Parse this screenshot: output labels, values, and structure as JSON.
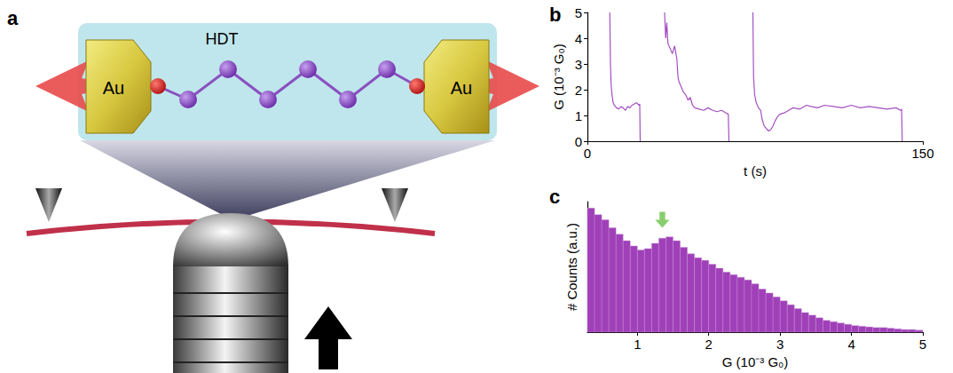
{
  "diagram": {
    "panel_label": "a",
    "molecule_label": "HDT",
    "electrode_left": "Au",
    "electrode_right": "Au"
  },
  "chart_data": [
    {
      "type": "line",
      "panel_label": "b",
      "xlabel": "t (s)",
      "ylabel": "G (10⁻³ G₀)",
      "xlim": [
        0,
        150
      ],
      "xticks": [
        0,
        150
      ],
      "ylim": [
        0,
        5
      ],
      "yticks": [
        0,
        1,
        2,
        3,
        4,
        5
      ],
      "grid": false,
      "x": [
        10,
        10.3,
        10.6,
        11,
        11.5,
        12,
        13,
        14,
        15,
        16,
        17,
        18,
        19,
        20,
        21,
        22,
        23,
        23.4,
        23.6,
        24,
        34.5,
        35,
        35.5,
        36,
        37,
        38,
        39,
        40,
        40.5,
        41,
        42,
        43,
        44,
        45,
        46,
        47,
        48,
        50,
        52,
        54,
        56,
        58,
        60,
        62,
        63,
        63.3,
        64,
        74,
        74.3,
        74.8,
        75.5,
        76.5,
        77.5,
        78,
        79,
        80,
        81,
        82,
        83,
        84,
        85,
        86,
        88,
        90,
        92,
        95,
        98,
        100,
        103,
        106,
        110,
        114,
        118,
        122,
        126,
        130,
        134,
        138,
        140,
        140.5,
        140.8
      ],
      "series": [
        {
          "color": "#a450c2",
          "values": [
            5,
            3,
            2.2,
            1.8,
            1.5,
            1.4,
            1.3,
            1.25,
            1.35,
            1.3,
            1.2,
            1.35,
            1.3,
            1.4,
            1.45,
            1.5,
            1.4,
            1.45,
            0,
            null,
            5,
            4,
            4.6,
            3.8,
            3.6,
            3.4,
            3.7,
            3.2,
            2.5,
            2.3,
            2.1,
            1.9,
            1.8,
            1.6,
            1.7,
            1.4,
            1.3,
            1.25,
            1.2,
            1.3,
            1.2,
            1.15,
            1.2,
            1.1,
            1.05,
            0,
            null,
            5,
            2.5,
            1.8,
            1.5,
            1.3,
            1.2,
            0.9,
            0.6,
            0.5,
            0.4,
            0.45,
            0.6,
            0.8,
            0.95,
            1.05,
            1.1,
            1.2,
            1.3,
            1.25,
            1.4,
            1.35,
            1.3,
            1.4,
            1.35,
            1.3,
            1.4,
            1.3,
            1.35,
            1.3,
            1.25,
            1.3,
            1.2,
            1.25,
            0
          ]
        }
      ]
    },
    {
      "type": "histogram",
      "panel_label": "c",
      "xlabel": "G (10⁻³ G₀)",
      "ylabel": "# Counts (a.u.)",
      "xlim": [
        0.3,
        5
      ],
      "xticks": [
        1,
        2,
        3,
        4,
        5
      ],
      "ylim": [
        0,
        1
      ],
      "tick_labels": "x",
      "grid": false,
      "color": "#a040b8",
      "bins": [
        0.3,
        0.4,
        0.5,
        0.6,
        0.7,
        0.8,
        0.9,
        1.0,
        1.1,
        1.2,
        1.3,
        1.4,
        1.5,
        1.6,
        1.7,
        1.8,
        1.9,
        2.0,
        2.1,
        2.2,
        2.3,
        2.4,
        2.5,
        2.6,
        2.7,
        2.8,
        2.9,
        3.0,
        3.1,
        3.2,
        3.3,
        3.4,
        3.5,
        3.6,
        3.7,
        3.8,
        3.9,
        4.0,
        4.1,
        4.2,
        4.3,
        4.4,
        4.5,
        4.6,
        4.7,
        4.8,
        4.9,
        5.0
      ],
      "counts": [
        0.95,
        0.9,
        0.86,
        0.8,
        0.75,
        0.7,
        0.66,
        0.63,
        0.64,
        0.68,
        0.72,
        0.73,
        0.7,
        0.65,
        0.6,
        0.57,
        0.55,
        0.52,
        0.49,
        0.46,
        0.44,
        0.42,
        0.4,
        0.37,
        0.33,
        0.3,
        0.27,
        0.24,
        0.21,
        0.18,
        0.15,
        0.13,
        0.11,
        0.09,
        0.08,
        0.07,
        0.06,
        0.05,
        0.045,
        0.04,
        0.035,
        0.035,
        0.03,
        0.025,
        0.02,
        0.02,
        0.015
      ],
      "annotations": [
        {
          "x": 1.35,
          "y": 0.86,
          "marker": "arrow",
          "color": "#6cc24a"
        }
      ]
    }
  ]
}
